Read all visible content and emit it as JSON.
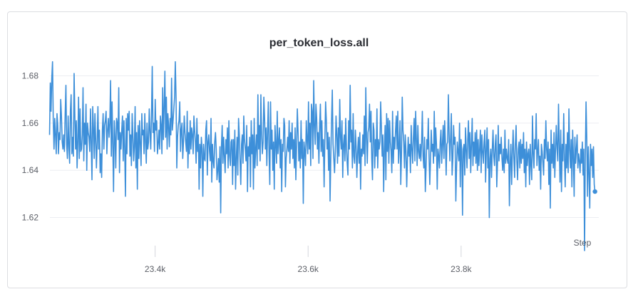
{
  "chart_data": {
    "type": "line",
    "title": "per_token_loss.all",
    "xlabel": "Step",
    "ylabel": "",
    "xlim": [
      23255,
      23980
    ],
    "ylim": [
      1.606,
      1.688
    ],
    "xticks": [
      23400,
      23600,
      23800
    ],
    "xtick_labels": [
      "23.4k",
      "23.6k",
      "23.8k"
    ],
    "yticks": [
      1.62,
      1.64,
      1.66,
      1.68
    ],
    "ytick_labels": [
      "1.62",
      "1.64",
      "1.66",
      "1.68"
    ],
    "grid": "horizontal",
    "legend": "none",
    "series": [
      {
        "color": "#3d8fd9",
        "x_start": 23262,
        "x_end": 23975,
        "values": [
          1.655,
          1.677,
          1.665,
          1.679,
          1.686,
          1.661,
          1.649,
          1.662,
          1.655,
          1.647,
          1.664,
          1.659,
          1.647,
          1.656,
          1.653,
          1.67,
          1.663,
          1.652,
          1.649,
          1.655,
          1.648,
          1.664,
          1.676,
          1.651,
          1.645,
          1.663,
          1.65,
          1.643,
          1.665,
          1.672,
          1.647,
          1.654,
          1.646,
          1.681,
          1.663,
          1.649,
          1.661,
          1.641,
          1.652,
          1.671,
          1.645,
          1.666,
          1.648,
          1.649,
          1.655,
          1.675,
          1.644,
          1.66,
          1.651,
          1.668,
          1.64,
          1.66,
          1.656,
          1.654,
          1.648,
          1.666,
          1.652,
          1.636,
          1.667,
          1.658,
          1.645,
          1.664,
          1.653,
          1.641,
          1.652,
          1.667,
          1.649,
          1.657,
          1.639,
          1.647,
          1.637,
          1.657,
          1.664,
          1.649,
          1.659,
          1.661,
          1.665,
          1.647,
          1.657,
          1.662,
          1.654,
          1.66,
          1.678,
          1.646,
          1.669,
          1.651,
          1.631,
          1.661,
          1.654,
          1.641,
          1.662,
          1.66,
          1.653,
          1.675,
          1.639,
          1.656,
          1.649,
          1.657,
          1.663,
          1.644,
          1.661,
          1.649,
          1.629,
          1.662,
          1.647,
          1.664,
          1.657,
          1.665,
          1.646,
          1.655,
          1.642,
          1.664,
          1.655,
          1.644,
          1.65,
          1.667,
          1.641,
          1.656,
          1.632,
          1.659,
          1.645,
          1.661,
          1.651,
          1.642,
          1.664,
          1.655,
          1.657,
          1.647,
          1.664,
          1.652,
          1.643,
          1.66,
          1.649,
          1.652,
          1.666,
          1.656,
          1.649,
          1.663,
          1.684,
          1.656,
          1.66,
          1.648,
          1.67,
          1.657,
          1.661,
          1.647,
          1.651,
          1.657,
          1.649,
          1.663,
          1.659,
          1.647,
          1.675,
          1.653,
          1.667,
          1.682,
          1.654,
          1.671,
          1.649,
          1.664,
          1.659,
          1.65,
          1.662,
          1.655,
          1.679,
          1.657,
          1.661,
          1.666,
          1.671,
          1.686,
          1.671,
          1.641,
          1.654,
          1.659,
          1.661,
          1.669,
          1.648,
          1.657,
          1.66,
          1.645,
          1.652,
          1.663,
          1.656,
          1.652,
          1.648,
          1.665,
          1.641,
          1.656,
          1.647,
          1.661,
          1.649,
          1.658,
          1.655,
          1.647,
          1.663,
          1.657,
          1.652,
          1.643,
          1.662,
          1.648,
          1.655,
          1.632,
          1.651,
          1.641,
          1.654,
          1.649,
          1.629,
          1.651,
          1.645,
          1.644,
          1.657,
          1.661,
          1.638,
          1.652,
          1.655,
          1.648,
          1.644,
          1.662,
          1.635,
          1.651,
          1.644,
          1.641,
          1.652,
          1.656,
          1.649,
          1.636,
          1.64,
          1.645,
          1.635,
          1.65,
          1.622,
          1.65,
          1.659,
          1.643,
          1.654,
          1.646,
          1.639,
          1.653,
          1.647,
          1.658,
          1.641,
          1.661,
          1.646,
          1.642,
          1.652,
          1.653,
          1.634,
          1.653,
          1.642,
          1.657,
          1.632,
          1.645,
          1.654,
          1.638,
          1.662,
          1.655,
          1.644,
          1.634,
          1.651,
          1.655,
          1.643,
          1.663,
          1.653,
          1.649,
          1.644,
          1.659,
          1.631,
          1.65,
          1.646,
          1.654,
          1.633,
          1.661,
          1.647,
          1.655,
          1.632,
          1.662,
          1.641,
          1.649,
          1.655,
          1.642,
          1.672,
          1.649,
          1.659,
          1.644,
          1.672,
          1.655,
          1.647,
          1.652,
          1.671,
          1.662,
          1.649,
          1.658,
          1.642,
          1.656,
          1.669,
          1.647,
          1.634,
          1.669,
          1.649,
          1.657,
          1.64,
          1.652,
          1.632,
          1.659,
          1.651,
          1.643,
          1.665,
          1.647,
          1.652,
          1.658,
          1.641,
          1.653,
          1.631,
          1.651,
          1.648,
          1.662,
          1.659,
          1.633,
          1.645,
          1.649,
          1.654,
          1.648,
          1.661,
          1.643,
          1.656,
          1.649,
          1.66,
          1.645,
          1.653,
          1.641,
          1.658,
          1.636,
          1.651,
          1.666,
          1.656,
          1.644,
          1.652,
          1.641,
          1.661,
          1.645,
          1.653,
          1.626,
          1.652,
          1.648,
          1.642,
          1.661,
          1.653,
          1.647,
          1.669,
          1.649,
          1.66,
          1.642,
          1.668,
          1.665,
          1.645,
          1.678,
          1.659,
          1.651,
          1.668,
          1.662,
          1.649,
          1.656,
          1.643,
          1.659,
          1.668,
          1.648,
          1.661,
          1.646,
          1.653,
          1.633,
          1.653,
          1.669,
          1.661,
          1.649,
          1.656,
          1.64,
          1.654,
          1.627,
          1.646,
          1.661,
          1.674,
          1.651,
          1.645,
          1.639,
          1.648,
          1.663,
          1.655,
          1.643,
          1.658,
          1.646,
          1.67,
          1.654,
          1.649,
          1.661,
          1.637,
          1.651,
          1.655,
          1.644,
          1.662,
          1.65,
          1.643,
          1.638,
          1.661,
          1.649,
          1.676,
          1.652,
          1.657,
          1.641,
          1.664,
          1.646,
          1.643,
          1.657,
          1.65,
          1.637,
          1.647,
          1.654,
          1.643,
          1.656,
          1.632,
          1.649,
          1.646,
          1.655,
          1.647,
          1.663,
          1.642,
          1.675,
          1.654,
          1.643,
          1.656,
          1.658,
          1.668,
          1.652,
          1.665,
          1.645,
          1.636,
          1.66,
          1.657,
          1.641,
          1.653,
          1.646,
          1.666,
          1.641,
          1.653,
          1.649,
          1.652,
          1.669,
          1.658,
          1.646,
          1.655,
          1.631,
          1.649,
          1.659,
          1.636,
          1.664,
          1.648,
          1.662,
          1.643,
          1.661,
          1.652,
          1.648,
          1.639,
          1.665,
          1.643,
          1.654,
          1.649,
          1.657,
          1.663,
          1.649,
          1.665,
          1.643,
          1.65,
          1.661,
          1.634,
          1.647,
          1.671,
          1.657,
          1.652,
          1.641,
          1.655,
          1.648,
          1.633,
          1.645,
          1.654,
          1.646,
          1.651,
          1.639,
          1.659,
          1.649,
          1.643,
          1.654,
          1.662,
          1.644,
          1.665,
          1.653,
          1.642,
          1.659,
          1.648,
          1.645,
          1.651,
          1.644,
          1.652,
          1.665,
          1.646,
          1.641,
          1.654,
          1.631,
          1.641,
          1.653,
          1.649,
          1.662,
          1.646,
          1.634,
          1.645,
          1.657,
          1.648,
          1.651,
          1.643,
          1.665,
          1.646,
          1.658,
          1.651,
          1.632,
          1.649,
          1.646,
          1.641,
          1.652,
          1.657,
          1.643,
          1.651,
          1.659,
          1.645,
          1.661,
          1.652,
          1.638,
          1.651,
          1.652,
          1.672,
          1.655,
          1.644,
          1.654,
          1.664,
          1.638,
          1.645,
          1.659,
          1.651,
          1.654,
          1.627,
          1.641,
          1.652,
          1.648,
          1.644,
          1.66,
          1.633,
          1.653,
          1.648,
          1.621,
          1.649,
          1.651,
          1.638,
          1.658,
          1.649,
          1.641,
          1.653,
          1.661,
          1.645,
          1.656,
          1.639,
          1.651,
          1.662,
          1.642,
          1.652,
          1.646,
          1.656,
          1.643,
          1.657,
          1.64,
          1.653,
          1.642,
          1.649,
          1.657,
          1.639,
          1.655,
          1.648,
          1.643,
          1.652,
          1.657,
          1.635,
          1.649,
          1.658,
          1.641,
          1.653,
          1.62,
          1.645,
          1.649,
          1.637,
          1.649,
          1.657,
          1.646,
          1.642,
          1.651,
          1.655,
          1.633,
          1.643,
          1.659,
          1.644,
          1.651,
          1.647,
          1.654,
          1.645,
          1.64,
          1.649,
          1.639,
          1.657,
          1.643,
          1.649,
          1.645,
          1.643,
          1.653,
          1.625,
          1.643,
          1.651,
          1.634,
          1.647,
          1.657,
          1.646,
          1.637,
          1.651,
          1.659,
          1.644,
          1.636,
          1.649,
          1.652,
          1.641,
          1.653,
          1.643,
          1.651,
          1.645,
          1.656,
          1.639,
          1.649,
          1.633,
          1.652,
          1.642,
          1.647,
          1.649,
          1.634,
          1.651,
          1.642,
          1.636,
          1.663,
          1.647,
          1.641,
          1.653,
          1.649,
          1.664,
          1.642,
          1.648,
          1.653,
          1.64,
          1.646,
          1.632,
          1.651,
          1.648,
          1.643,
          1.638,
          1.653,
          1.645,
          1.661,
          1.649,
          1.644,
          1.652,
          1.634,
          1.649,
          1.624,
          1.657,
          1.643,
          1.651,
          1.641,
          1.656,
          1.637,
          1.649,
          1.659,
          1.649,
          1.644,
          1.668,
          1.651,
          1.635,
          1.657,
          1.631,
          1.651,
          1.644,
          1.664,
          1.646,
          1.633,
          1.651,
          1.641,
          1.656,
          1.639,
          1.666,
          1.649,
          1.641,
          1.653,
          1.633,
          1.657,
          1.646,
          1.629,
          1.654,
          1.643,
          1.649,
          1.655,
          1.641,
          1.647,
          1.644,
          1.639,
          1.649,
          1.643,
          1.652,
          1.638,
          1.649,
          1.606,
          1.645,
          1.669,
          1.653,
          1.629,
          1.65,
          1.639,
          1.624,
          1.651,
          1.642,
          1.649,
          1.637,
          1.65,
          1.634,
          1.631
        ]
      }
    ]
  }
}
